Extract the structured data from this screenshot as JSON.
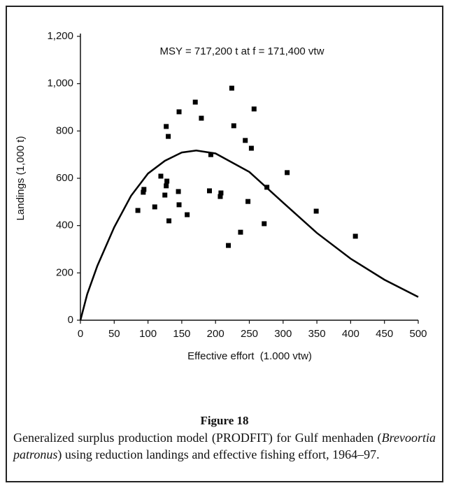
{
  "chart_data": {
    "type": "scatter",
    "annotation": "MSY = 717,200 t at f = 171,400 vtw",
    "x_label": "Effective effort  (1.000 vtw)",
    "y_label": "Landings (1,000 t)",
    "color": "#000000",
    "x": [
      85,
      93,
      94,
      110,
      119,
      125,
      127,
      128,
      127,
      130,
      131,
      145,
      146,
      146,
      158,
      170,
      179,
      191,
      193,
      208,
      207,
      219,
      224,
      227,
      237,
      244,
      248,
      253,
      257,
      272,
      276,
      306,
      349,
      407
    ],
    "values": [
      464,
      541,
      553,
      479,
      609,
      529,
      568,
      588,
      819,
      777,
      420,
      544,
      488,
      881,
      446,
      922,
      854,
      547,
      700,
      538,
      523,
      316,
      981,
      822,
      372,
      760,
      502,
      727,
      893,
      408,
      562,
      624,
      461,
      355
    ],
    "curve": {
      "x": [
        0,
        10,
        25,
        50,
        75,
        100,
        125,
        150,
        171.4,
        200,
        250,
        300,
        350,
        400,
        450,
        500
      ],
      "values": [
        0,
        110,
        230,
        393,
        526,
        620,
        674,
        709,
        717.2,
        705,
        627,
        497,
        369,
        260,
        171,
        98
      ]
    },
    "xlim": [
      0,
      500
    ],
    "xticks": [
      0,
      50,
      100,
      150,
      200,
      250,
      300,
      350,
      400,
      450,
      500
    ],
    "ylim": [
      0,
      1200
    ],
    "yticks": [
      0,
      200,
      400,
      600,
      800,
      {
        "value": 1000,
        "label": "1,000"
      },
      {
        "value": 1200,
        "label": "1,200"
      }
    ]
  },
  "figure": {
    "label": "Figure 18",
    "caption": [
      "Generalized surplus production model (PRODFIT) for Gulf menhaden (",
      "Brevoortia patronus",
      ") using reduction landings and effective fishing effort, 1964–97."
    ]
  }
}
